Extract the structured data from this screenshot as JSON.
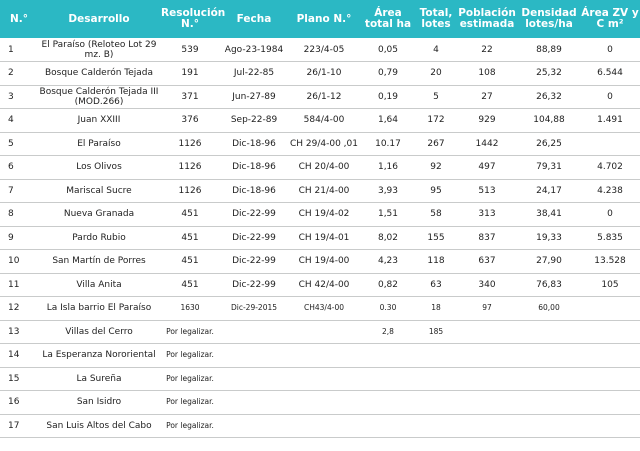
{
  "headers": [
    "N.°",
    "Desarrollo",
    "Resolución N.°",
    "Fecha",
    "Plano N.°",
    "Área total ha",
    "Total, lotes",
    "Población estimada",
    "Densidad lotes/ha",
    "Área ZV y C m²"
  ],
  "rows": [
    {
      "n": "1",
      "desarrollo": "El Paraíso (Reloteo Lot 29 mz. B)",
      "resolucion": "539",
      "fecha": "Ago-23-1984",
      "plano": "223/4-05",
      "area": "0,05",
      "lotes": "4",
      "poblacion": "22",
      "densidad": "88,89",
      "zv": "0"
    },
    {
      "n": "2",
      "desarrollo": "Bosque Calderón Tejada",
      "resolucion": "191",
      "fecha": "Jul-22-85",
      "plano": "26/1-10",
      "area": "0,79",
      "lotes": "20",
      "poblacion": "108",
      "densidad": "25,32",
      "zv": "6.544"
    },
    {
      "n": "3",
      "desarrollo": "Bosque Calderón Tejada III (MOD.266)",
      "resolucion": "371",
      "fecha": "Jun-27-89",
      "plano": "26/1-12",
      "area": "0,19",
      "lotes": "5",
      "poblacion": "27",
      "densidad": "26,32",
      "zv": "0"
    },
    {
      "n": "4",
      "desarrollo": "Juan XXIII",
      "resolucion": "376",
      "fecha": "Sep-22-89",
      "plano": "584/4-00",
      "area": "1,64",
      "lotes": "172",
      "poblacion": "929",
      "densidad": "104,88",
      "zv": "1.491"
    },
    {
      "n": "5",
      "desarrollo": "El Paraíso",
      "resolucion": "1126",
      "fecha": "Dic-18-96",
      "plano": "CH 29/4-00 ,01",
      "area": "10.17",
      "lotes": "267",
      "poblacion": "1442",
      "densidad": "26,25",
      "zv": ""
    },
    {
      "n": "6",
      "desarrollo": "Los Olivos",
      "resolucion": "1126",
      "fecha": "Dic-18-96",
      "plano": "CH 20/4-00",
      "area": "1,16",
      "lotes": "92",
      "poblacion": "497",
      "densidad": "79,31",
      "zv": "4.702"
    },
    {
      "n": "7",
      "desarrollo": "Mariscal Sucre",
      "resolucion": "1126",
      "fecha": "Dic-18-96",
      "plano": "CH 21/4-00",
      "area": "3,93",
      "lotes": "95",
      "poblacion": "513",
      "densidad": "24,17",
      "zv": "4.238"
    },
    {
      "n": "8",
      "desarrollo": "Nueva Granada",
      "resolucion": "451",
      "fecha": "Dic-22-99",
      "plano": "CH 19/4-02",
      "area": "1,51",
      "lotes": "58",
      "poblacion": "313",
      "densidad": "38,41",
      "zv": "0"
    },
    {
      "n": "9",
      "desarrollo": "Pardo Rubio",
      "resolucion": "451",
      "fecha": "Dic-22-99",
      "plano": "CH 19/4-01",
      "area": "8,02",
      "lotes": "155",
      "poblacion": "837",
      "densidad": "19,33",
      "zv": "5.835"
    },
    {
      "n": "10",
      "desarrollo": "San Martín de Porres",
      "resolucion": "451",
      "fecha": "Dic-22-99",
      "plano": "CH 19/4-00",
      "area": "4,23",
      "lotes": "118",
      "poblacion": "637",
      "densidad": "27,90",
      "zv": "13.528"
    },
    {
      "n": "11",
      "desarrollo": "Villa Anita",
      "resolucion": "451",
      "fecha": "Dic-22-99",
      "plano": "CH 42/4-00",
      "area": "0,82",
      "lotes": "63",
      "poblacion": "340",
      "densidad": "76,83",
      "zv": "105"
    },
    {
      "n": "12",
      "desarrollo": "La Isla barrio El Paraíso",
      "resolucion": "1630",
      "fecha": "Dic-29-2015",
      "plano": "CH43/4-00",
      "area": "0.30",
      "lotes": "18",
      "poblacion": "97",
      "densidad": "60,00",
      "zv": ""
    },
    {
      "n": "13",
      "desarrollo": "Villas del Cerro",
      "resolucion": "Por legalizar.",
      "fecha": "",
      "plano": "",
      "area": "2,8",
      "lotes": "185",
      "poblacion": "",
      "densidad": "",
      "zv": ""
    },
    {
      "n": "14",
      "desarrollo": "La Esperanza Nororiental",
      "resolucion": "Por legalizar.",
      "fecha": "",
      "plano": "",
      "area": "",
      "lotes": "",
      "poblacion": "",
      "densidad": "",
      "zv": ""
    },
    {
      "n": "15",
      "desarrollo": "La Sureña",
      "resolucion": "Por legalizar.",
      "fecha": "",
      "plano": "",
      "area": "",
      "lotes": "",
      "poblacion": "",
      "densidad": "",
      "zv": ""
    },
    {
      "n": "16",
      "desarrollo": "San Isidro",
      "resolucion": "Por legalizar.",
      "fecha": "",
      "plano": "",
      "area": "",
      "lotes": "",
      "poblacion": "",
      "densidad": "",
      "zv": ""
    },
    {
      "n": "17",
      "desarrollo": "San Luis Altos del Cabo",
      "resolucion": "Por legalizar.",
      "fecha": "",
      "plano": "",
      "area": "",
      "lotes": "",
      "poblacion": "",
      "densidad": "",
      "zv": ""
    }
  ]
}
